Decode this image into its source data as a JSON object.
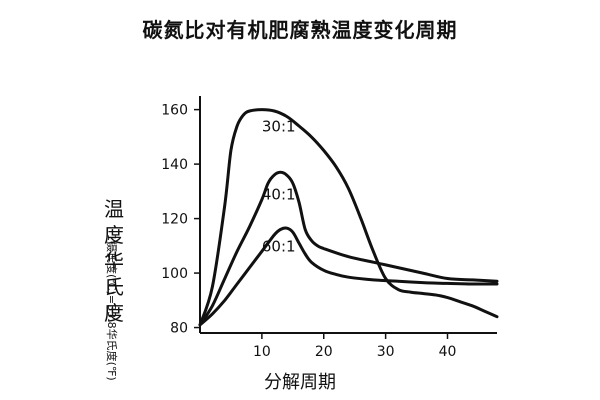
{
  "chart_data": {
    "type": "line",
    "title": "碳氮比对有机肥腐熟温度变化周期",
    "xlabel": "分解周期",
    "ylabel": "温度华氏度",
    "ylabel_note": "1摄氏度(℃)=33.8华氏度(℉)",
    "xlim": [
      0,
      48
    ],
    "ylim": [
      78,
      165
    ],
    "xticks": [
      10,
      20,
      30,
      40
    ],
    "yticks": [
      80,
      100,
      120,
      140,
      160
    ],
    "grid": false,
    "series": [
      {
        "name": "30:1",
        "x": [
          0,
          2,
          4,
          5,
          6,
          7,
          8,
          10,
          12,
          14,
          16,
          18,
          20,
          22,
          24,
          26,
          28,
          30,
          32,
          34,
          36,
          38,
          40,
          42,
          44,
          46,
          48
        ],
        "y": [
          81,
          95,
          125,
          145,
          154,
          158,
          159.5,
          160,
          159.5,
          157.5,
          154,
          150,
          145,
          139,
          131,
          120,
          108,
          98,
          94,
          93,
          92.5,
          92,
          91,
          89.5,
          88,
          86,
          84
        ]
      },
      {
        "name": "40:1",
        "x": [
          0,
          2,
          4,
          6,
          8,
          10,
          11,
          12,
          13,
          14,
          15,
          16,
          17,
          18,
          19,
          20,
          24,
          28,
          32,
          36,
          40,
          44,
          48
        ],
        "y": [
          81,
          88,
          98,
          108,
          117,
          127,
          133,
          136,
          137,
          136,
          133,
          126,
          116,
          112,
          110,
          109,
          106,
          104,
          102,
          100,
          98,
          97.5,
          97
        ]
      },
      {
        "name": "60:1",
        "x": [
          0,
          2,
          4,
          6,
          8,
          10,
          12,
          13,
          14,
          15,
          16,
          17,
          18,
          20,
          22,
          24,
          28,
          32,
          36,
          40,
          44,
          48
        ],
        "y": [
          81,
          85,
          90,
          96,
          102,
          108,
          114,
          116,
          116.5,
          115,
          111,
          107,
          104,
          101,
          99.5,
          98.5,
          97.5,
          97,
          96.5,
          96.2,
          96,
          96
        ]
      }
    ],
    "annotations": [
      {
        "text": "30:1",
        "x": 10,
        "y": 152
      },
      {
        "text": "40:1",
        "x": 10,
        "y": 127
      },
      {
        "text": "60:1",
        "x": 10,
        "y": 108
      }
    ]
  }
}
